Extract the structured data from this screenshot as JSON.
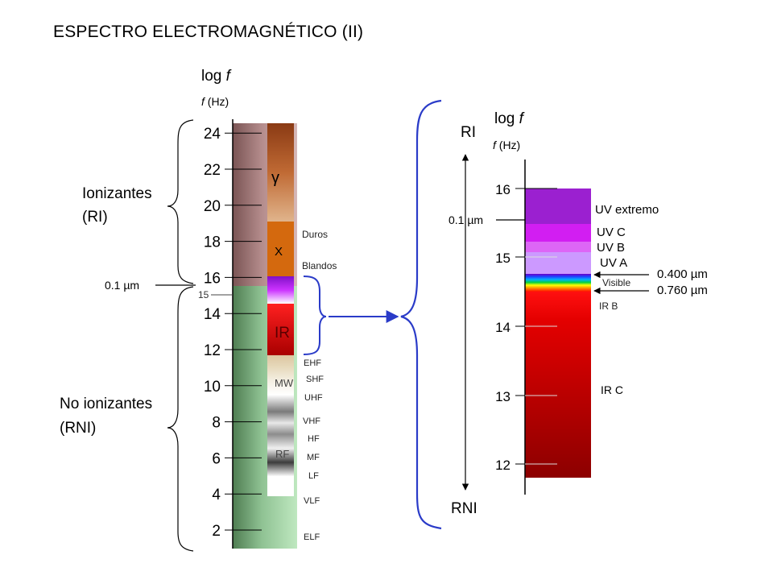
{
  "title": "ESPECTRO ELECTROMAGNÉTICO (II)",
  "left": {
    "axis_label": "log ",
    "axis_label_var": "f",
    "unit_label_var": "f",
    "unit_label": " (Hz)",
    "ticks": [
      "2",
      "4",
      "6",
      "8",
      "10",
      "12",
      "14",
      "16",
      "18",
      "20",
      "22",
      "24"
    ],
    "extra_tick": "15",
    "wavelength_marker": "0.1 µm",
    "group_ionizing_line1": "Ionizantes",
    "group_ionizing_line2": "(RI)",
    "group_nonionizing_line1": "No ionizantes",
    "group_nonionizing_line2": "(RNI)",
    "bands": {
      "gamma": "γ",
      "x": "X",
      "ir": "IR",
      "mw": "MW",
      "rf": "RF"
    },
    "xray_labels": [
      "Duros",
      "Blandos"
    ],
    "radio_labels": [
      "EHF",
      "SHF",
      "UHF",
      "VHF",
      "HF",
      "MF",
      "LF",
      "VLF",
      "ELF"
    ]
  },
  "right": {
    "axis_label": "log ",
    "axis_label_var": "f",
    "unit_label_var": "f",
    "unit_label": " (Hz)",
    "ticks": [
      "12",
      "13",
      "14",
      "15",
      "16"
    ],
    "wavelength_marker": "0.1 µm",
    "top_label": "RI",
    "bottom_label": "RNI",
    "bands": [
      "UV extremo",
      "UV C",
      "UV B",
      "UV A",
      "Visible",
      "IR B",
      "IR C"
    ],
    "visible_limits": [
      "0.400 µm",
      "0.760 µm"
    ]
  },
  "colors": {
    "ionizing_column": "#a97e7e",
    "nonionizing_column": "#8fc293",
    "brace": "#2a3bc8",
    "ir_red": "#d60000",
    "uv_violet": "#9b20d0",
    "xray_orange": "#d4690e"
  }
}
